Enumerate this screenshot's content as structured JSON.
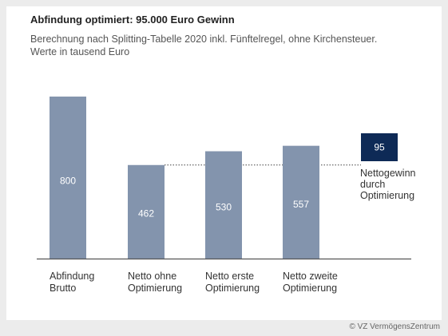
{
  "header": {
    "title": "Abfindung optimiert: 95.000 Euro Gewinn",
    "subtitle_line1": "Berechnung nach Splitting-Tabelle 2020 inkl. Fünftelregel, ohne Kirchensteuer.",
    "subtitle_line2": "Werte in tausend Euro"
  },
  "footer": {
    "credit": "© VZ VermögensZentrum"
  },
  "chart_data": {
    "type": "bar",
    "categories": [
      [
        "Abfindung",
        "Brutto"
      ],
      [
        "Netto ohne",
        "Optimierung"
      ],
      [
        "Netto erste",
        "Optimierung"
      ],
      [
        "Netto zweite",
        "Optimierung"
      ]
    ],
    "values": [
      800,
      462,
      530,
      557
    ],
    "value_labels": [
      "800",
      "462",
      "530",
      "557"
    ],
    "ylim": [
      0,
      800
    ],
    "grid": false,
    "highlight": {
      "value": 95,
      "label": "95",
      "annotation": [
        "Nettogewinn",
        "durch",
        "Optimierung"
      ]
    },
    "reference_line": {
      "from_value": 462,
      "style": "dotted"
    },
    "colors": {
      "bar": "#8394ad",
      "highlight": "#0e2a56",
      "axis": "#555555",
      "text": "#333333",
      "bar_text": "#ffffff"
    }
  }
}
